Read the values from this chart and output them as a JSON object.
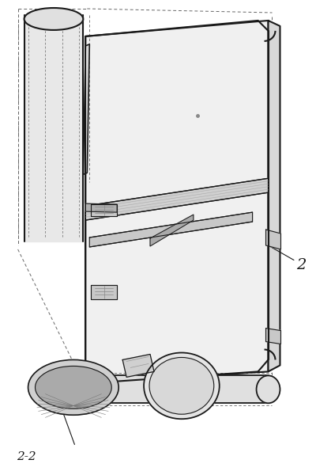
{
  "background_color": "#ffffff",
  "line_color": "#1a1a1a",
  "dash_color": "#666666",
  "label_2": "2",
  "label_22": "2-2",
  "fig_width": 4.0,
  "fig_height": 6.0,
  "dpi": 100
}
